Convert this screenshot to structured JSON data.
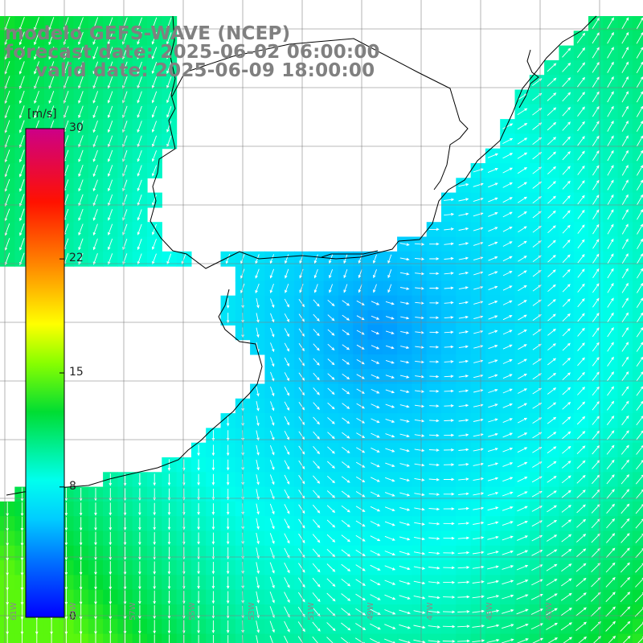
{
  "header": {
    "model_line": "modelo GEFS-WAVE (NCEP)",
    "forecast_line": "forecast date: 2025-06-02 06:00:00",
    "valid_line": "valid date: 2025-06-09 18:00:00"
  },
  "colorbar": {
    "unit": "[m/s]",
    "ticks": [
      {
        "value": 30,
        "label": "30"
      },
      {
        "value": 22,
        "label": "22"
      },
      {
        "value": 15,
        "label": "15"
      },
      {
        "value": 8,
        "label": "8"
      },
      {
        "value": 0,
        "label": "0"
      }
    ],
    "range": [
      0,
      30
    ],
    "colors": [
      "#0000ff",
      "#0099ff",
      "#00ffee",
      "#00cc33",
      "#66ff00",
      "#ffff00",
      "#ff9900",
      "#ff2200",
      "#cc0099"
    ]
  },
  "map": {
    "field": "wind speed and direction",
    "land_color": "#ffffff",
    "coast_color": "#000000",
    "grid_color": "#808080",
    "arrow_color": "#ffffff",
    "lon_labels": [
      "61W",
      "59W",
      "57W",
      "55W",
      "53W",
      "51W",
      "49W",
      "47W",
      "45W",
      "43W"
    ]
  }
}
